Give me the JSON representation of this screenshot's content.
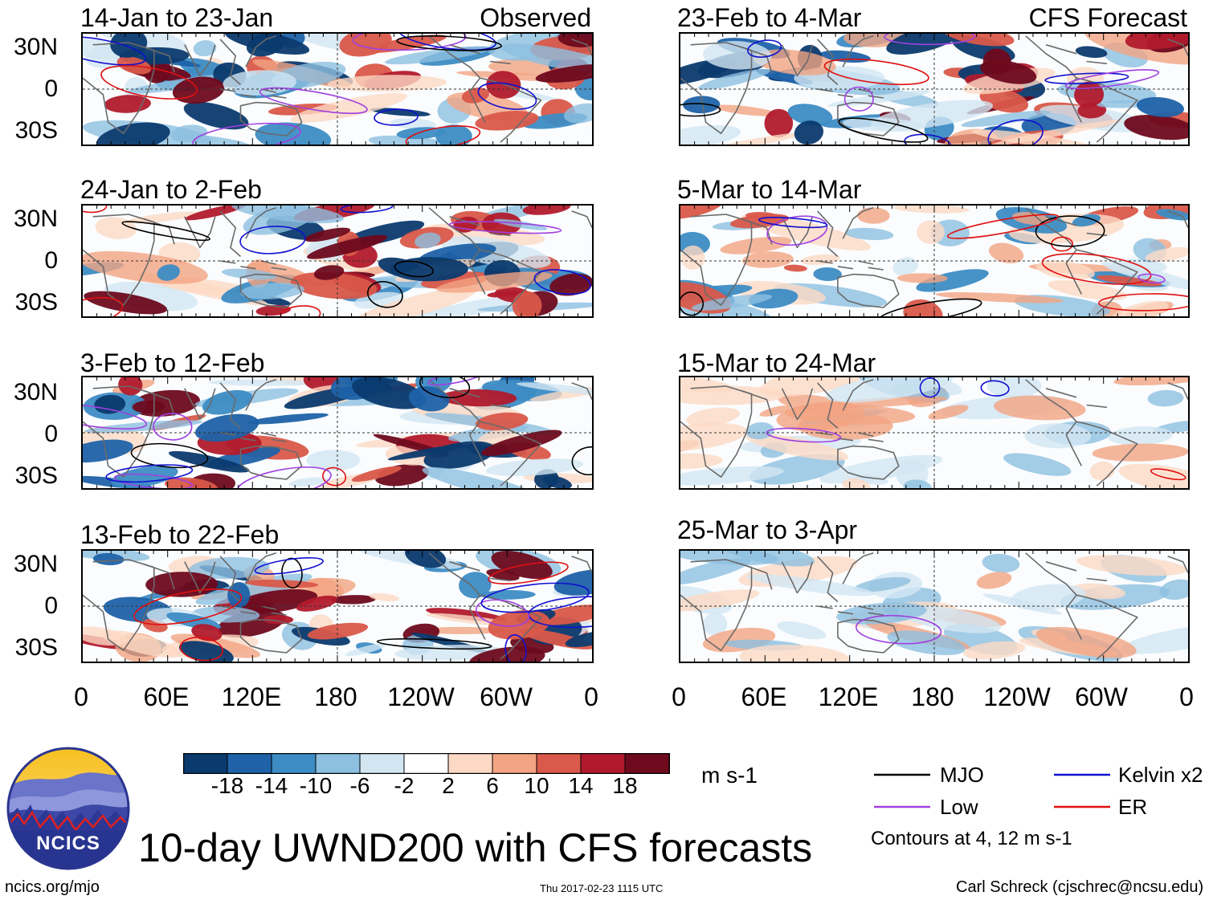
{
  "header": {
    "observed_label": "Observed",
    "forecast_label": "CFS Forecast"
  },
  "observed_panels": [
    {
      "title": "14-Jan to 23-Jan"
    },
    {
      "title": "24-Jan to 2-Feb"
    },
    {
      "title": "3-Feb to 12-Feb"
    },
    {
      "title": "13-Feb to 22-Feb"
    }
  ],
  "forecast_panels": [
    {
      "title": "23-Feb to 4-Mar"
    },
    {
      "title": "5-Mar to 14-Mar"
    },
    {
      "title": "15-Mar to 24-Mar"
    },
    {
      "title": "25-Mar to 3-Apr"
    }
  ],
  "latitude_labels": [
    "30N",
    "0",
    "30S"
  ],
  "longitude_labels": [
    "0",
    "60E",
    "120E",
    "180",
    "120W",
    "60W",
    "0"
  ],
  "colorbar": {
    "ticks": [
      "-18",
      "-14",
      "-10",
      "-6",
      "-2",
      "2",
      "6",
      "10",
      "14",
      "18"
    ],
    "units": "m s-1",
    "colors": [
      "#0b3a6e",
      "#1f62a8",
      "#3d8cc4",
      "#8dbfe0",
      "#d2e6f2",
      "#ffffff",
      "#fcd9c4",
      "#f3a482",
      "#d9594a",
      "#b11a2c",
      "#6e0a1e"
    ]
  },
  "legend": {
    "items": [
      {
        "label": "MJO",
        "color": "#000000"
      },
      {
        "label": "Kelvin x2",
        "color": "#1010d0"
      },
      {
        "label": "Low",
        "color": "#a040e0"
      },
      {
        "label": "ER",
        "color": "#e01010"
      }
    ],
    "contours_note": "Contours at 4, 12 m s-1"
  },
  "logo": {
    "text": "NCICS"
  },
  "main_title": "10-day UWND200 with CFS forecasts",
  "footer": {
    "url": "ncics.org/mjo",
    "timestamp": "Thu 2017-02-23 1115 UTC",
    "author": "Carl Schreck (cjschrec@ncsu.edu)"
  }
}
